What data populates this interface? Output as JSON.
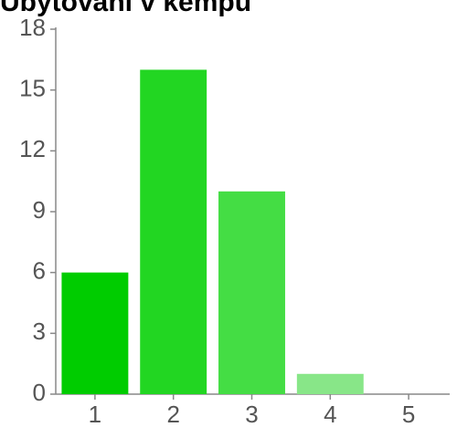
{
  "chart_data": {
    "type": "bar",
    "title": "Ubytování v kempu",
    "categories": [
      "1",
      "2",
      "3",
      "4",
      "5"
    ],
    "values": [
      6,
      16,
      10,
      1,
      0
    ],
    "colors": [
      "#00cc00",
      "#22d622",
      "#44dd44",
      "#88e688",
      "#bbf0bb"
    ],
    "ylim": [
      0,
      18
    ],
    "yticks": [
      0,
      3,
      6,
      9,
      12,
      15,
      18
    ]
  }
}
